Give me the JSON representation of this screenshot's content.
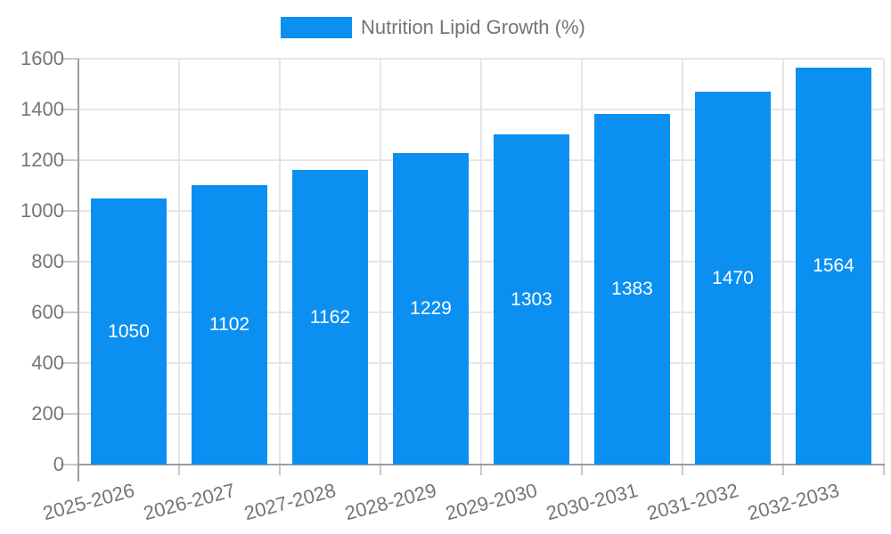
{
  "chart_data": {
    "type": "bar",
    "title": "",
    "xlabel": "",
    "ylabel": "",
    "legend": {
      "label": "Nutrition Lipid Growth (%)",
      "position": "top-center"
    },
    "categories": [
      "2025-2026",
      "2026-2027",
      "2027-2028",
      "2028-2029",
      "2029-2030",
      "2030-2031",
      "2031-2032",
      "2032-2033"
    ],
    "series": [
      {
        "name": "Nutrition Lipid Growth (%)",
        "values": [
          1050,
          1102,
          1162,
          1229,
          1303,
          1383,
          1470,
          1564
        ]
      }
    ],
    "value_labels": {
      "position": "inside-center",
      "color": "#ffffff"
    },
    "ylim": [
      0,
      1600
    ],
    "yticks": [
      0,
      200,
      400,
      600,
      800,
      1000,
      1200,
      1400,
      1600
    ],
    "grid": {
      "horizontal": true,
      "vertical": true
    },
    "x_tick_rotation_deg": -15,
    "colors": {
      "bar": "#0b90f2",
      "grid": "#e6e6e6",
      "axis": "#9e9e9e",
      "tick": "#c9c9c9",
      "label_text": "#757575",
      "value_text": "#ffffff",
      "background": "#ffffff"
    }
  }
}
